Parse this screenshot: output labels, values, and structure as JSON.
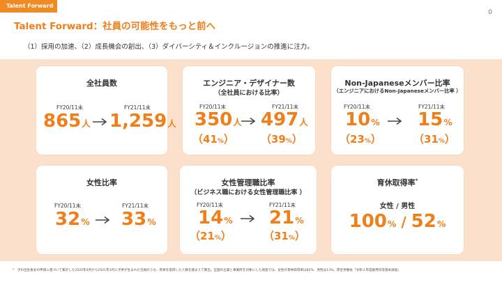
{
  "tag": "Talent Forward",
  "page_number": "0",
  "title": "Talent Forward：社員の可能性をもっと前へ",
  "subtitle": "（1）採用の加速、（2）成長機会の創出、（3）ダイバーシティ＆インクルージョンの推進に注力。",
  "cards": {
    "employees": {
      "title": "全社員数",
      "from_label": "FY20/11末",
      "from_value": "865",
      "from_unit": "人",
      "to_label": "FY21/11末",
      "to_value": "1,259",
      "to_unit": "人"
    },
    "engineers": {
      "title": "エンジニア・デザイナー数",
      "subtitle": "（全社員における比率）",
      "from_label": "FY20/11末",
      "from_value": "350",
      "from_unit": "人",
      "from_pct_open": "（41",
      "from_pct_unit": "%",
      "from_pct_close": "）",
      "to_label": "FY21/11末",
      "to_value": "497",
      "to_unit": "人",
      "to_pct_open": "（39",
      "to_pct_unit": "%",
      "to_pct_close": "）"
    },
    "non_japanese": {
      "title": "Non-Japaneseメンバー比率",
      "subtitle": "（エンジニアにおけるNon-Japaneseメンバー比率 ）",
      "from_label": "FY20/11末",
      "from_value": "10",
      "from_unit": "%",
      "from_pct_open": "（23",
      "from_pct_unit": "%",
      "from_pct_close": "）",
      "to_label": "FY21/11末",
      "to_value": "15",
      "to_unit": "%",
      "to_pct_open": "（31",
      "to_pct_unit": "%",
      "to_pct_close": "）"
    },
    "women": {
      "title": "女性比率",
      "from_label": "FY20/11末",
      "from_value": "32",
      "from_unit": "%",
      "to_label": "FY21/11末",
      "to_value": "33",
      "to_unit": "%"
    },
    "women_managers": {
      "title": "女性管理職比率",
      "subtitle": "（ビジネス職における女性管理職比率 ）",
      "from_label": "FY20/11末",
      "from_value": "14",
      "from_unit": "%",
      "from_pct_open": "（21",
      "from_pct_unit": "%",
      "from_pct_close": "）",
      "to_label": "FY21/11末",
      "to_value": "21",
      "to_unit": "%",
      "to_pct_open": "（31",
      "to_pct_unit": "%",
      "to_pct_close": "）"
    },
    "childcare": {
      "title": "育休取得率",
      "title_mark": "*",
      "subtitle": "女性 / 男性",
      "value_a": "100",
      "unit_a": "%",
      "sep": " / ",
      "value_b": "52",
      "unit_b": "%"
    }
  },
  "footnote": "*　子の出生後女の申請に基づいて集計した2020年4月から2021年3月に子供が生まれた社員のうち、育休を取得した人数を踏まえて算出。全国の企業と事業所を対象にした調査では、女性の育休取得率は82%、男性は13%。厚生労働省「令和２年度雇用均等基本調査」",
  "colors": {
    "accent": "#ef7f1a",
    "panel": "#fbe1cc",
    "tag_bg": "#f08a24"
  }
}
